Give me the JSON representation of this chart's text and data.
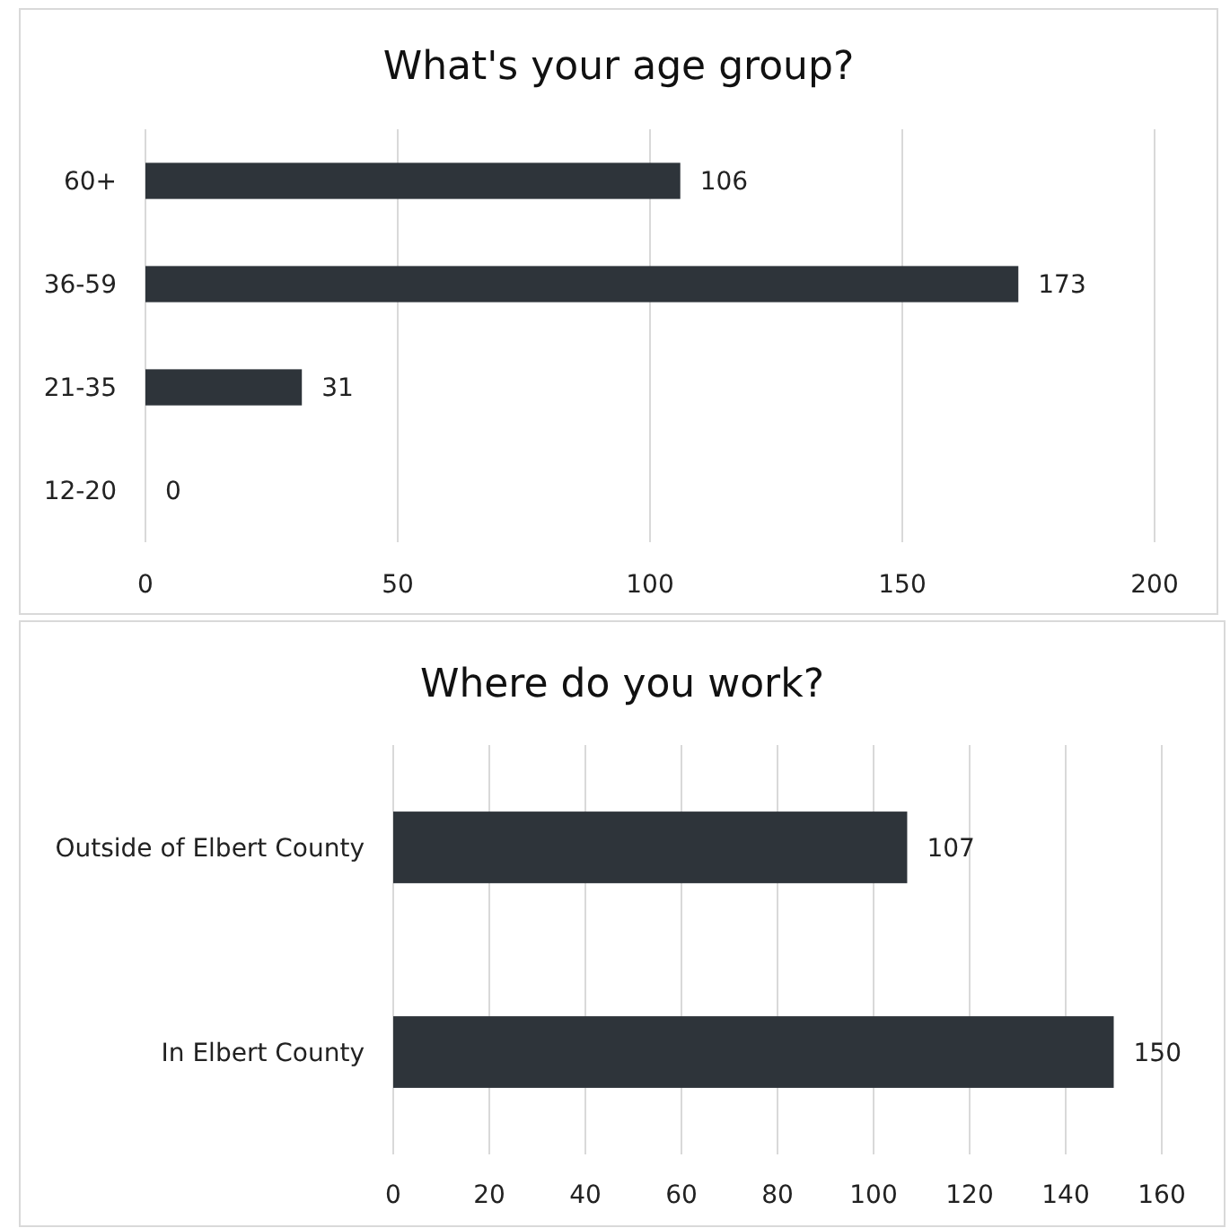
{
  "chart_data": [
    {
      "type": "bar",
      "orientation": "horizontal",
      "title": "What's your age group?",
      "categories": [
        "60+",
        "36-59",
        "21-35",
        "12-20"
      ],
      "values": [
        106,
        173,
        31,
        0
      ],
      "color": "#2e343a",
      "xlim": [
        0,
        200
      ],
      "xticks": [
        0,
        50,
        100,
        150,
        200
      ],
      "grid": "x",
      "data_labels": true
    },
    {
      "type": "bar",
      "orientation": "horizontal",
      "title": "Where do you work?",
      "categories": [
        "Outside of Elbert County",
        "In Elbert County"
      ],
      "values": [
        107,
        150
      ],
      "color": "#2e343a",
      "xlim": [
        0,
        160
      ],
      "xticks": [
        0,
        20,
        40,
        60,
        80,
        100,
        120,
        140,
        160
      ],
      "grid": "x",
      "data_labels": true
    }
  ]
}
